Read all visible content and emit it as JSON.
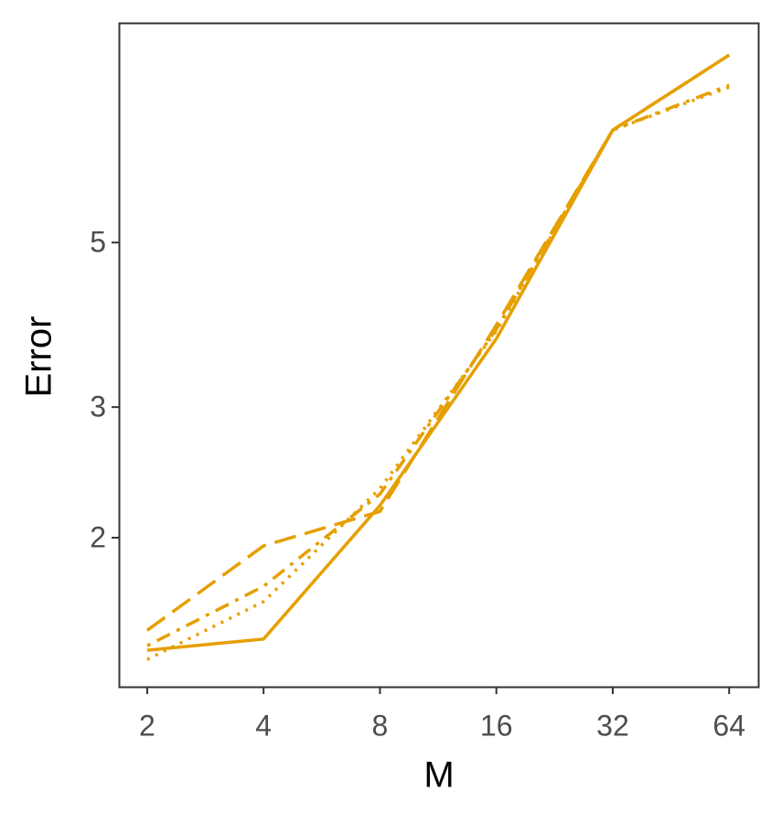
{
  "chart_data": {
    "type": "line",
    "x_label": "M",
    "y_label": "Error",
    "x": [
      2,
      4,
      8,
      16,
      32,
      64
    ],
    "xscale": "log",
    "yscale": "log",
    "xlim": [
      1.69,
      76.1
    ],
    "ylim": [
      1.259,
      9.89
    ],
    "xticks": [
      2,
      4,
      8,
      16,
      32,
      64
    ],
    "yticks": [
      2,
      3,
      5
    ],
    "grid": false,
    "series": [
      {
        "color": "#E69F00",
        "dash": "solid",
        "values": [
          1.41,
          1.46,
          2.21,
          3.71,
          7.09,
          8.95
        ]
      },
      {
        "color": "#E69F00",
        "dash": "longdash",
        "values": [
          1.5,
          1.95,
          2.17,
          3.87,
          7.09,
          8.95
        ]
      },
      {
        "color": "#E69F00",
        "dash": "dotdash",
        "values": [
          1.43,
          1.72,
          2.29,
          3.82,
          7.09,
          8.15
        ]
      },
      {
        "color": "#E69F00",
        "dash": "dotted",
        "values": [
          1.37,
          1.64,
          2.33,
          3.8,
          7.09,
          8.1
        ]
      }
    ]
  }
}
